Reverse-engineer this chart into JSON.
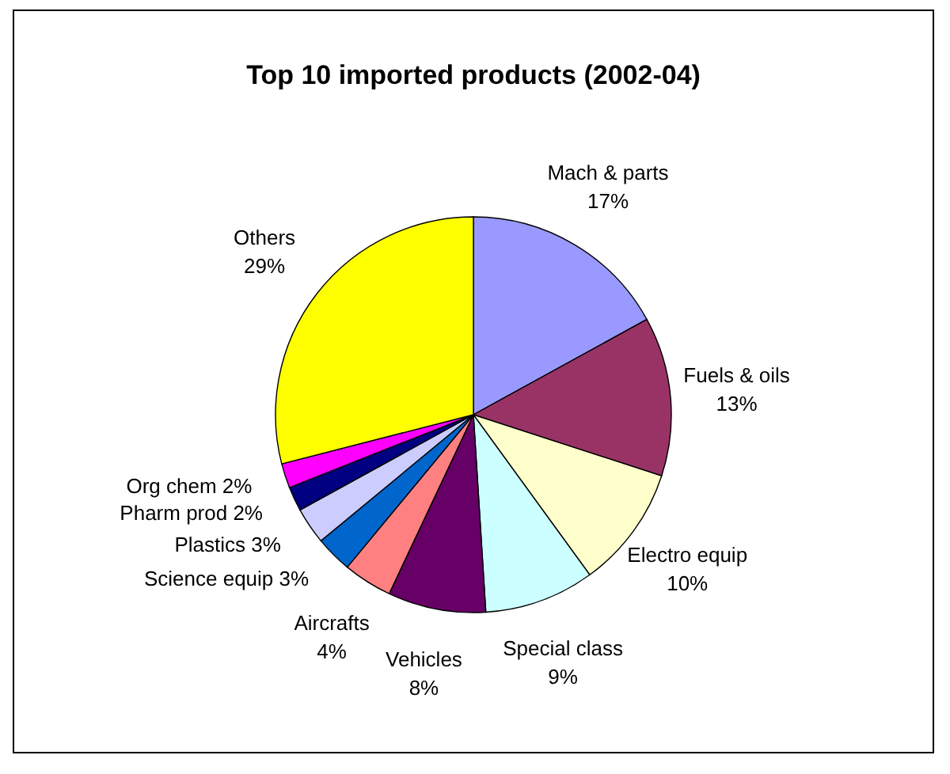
{
  "chart_data": {
    "type": "pie",
    "title": "Top 10 imported products (2002-04)",
    "categories": [
      "Mach & parts",
      "Fuels & oils",
      "Electro equip",
      "Special class",
      "Vehicles",
      "Aircrafts",
      "Science equip",
      "Plastics",
      "Pharm prod",
      "Org chem",
      "Others"
    ],
    "values": [
      17,
      13,
      10,
      9,
      8,
      4,
      3,
      3,
      2,
      2,
      29
    ],
    "value_labels": [
      "17%",
      "13%",
      "10%",
      "9%",
      "8%",
      "4%",
      "3%",
      "3%",
      "2%",
      "2%",
      "29%"
    ],
    "colors": [
      "#9999ff",
      "#993366",
      "#ffffcc",
      "#ccffff",
      "#660066",
      "#ff8080",
      "#0066cc",
      "#ccccff",
      "#000080",
      "#ff00ff",
      "#ffff00"
    ],
    "legend": false
  }
}
